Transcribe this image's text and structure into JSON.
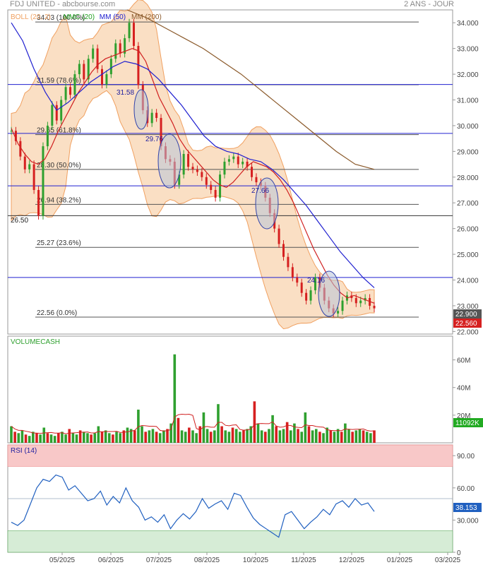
{
  "header": {
    "title": "FDJ UNITED - abcbourse.com",
    "period": "2 ANS - JOUR"
  },
  "colors": {
    "up": "#2fa02f",
    "down": "#d62020",
    "boll": "#f0a060",
    "boll_fill": "#f8d4b0",
    "mmc20": "#d02020",
    "mm50": "#2020d0",
    "mm200": "#8b5a2b",
    "rsi": "#2060c0",
    "vol_up": "#2fa02f",
    "vol_down": "#d62020",
    "last_price_tag": "#555555",
    "prev_price_tag": "#d62020",
    "vol_tag": "#22aa22",
    "rsi_tag": "#2060c0"
  },
  "legend": [
    {
      "label": "BOLL",
      "params": "(20, 2)",
      "color": "#f0a060"
    },
    {
      "label": "MMC",
      "params": "(20)",
      "color": "#20a020"
    },
    {
      "label": "MM",
      "params": "(50)",
      "color": "#2020d0"
    },
    {
      "label": "MM",
      "params": "(200)",
      "color": "#8b5a2b"
    }
  ],
  "chart_data": [
    {
      "type": "line",
      "title": "",
      "ylim": [
        21.9,
        34.5
      ],
      "y_ticks": [
        "22.000",
        "23.000",
        "24.000",
        "25.000",
        "26.000",
        "27.000",
        "28.000",
        "29.000",
        "30.000",
        "31.000",
        "32.000",
        "33.000",
        "34.000"
      ],
      "x_ticks": [
        "05/2025",
        "06/2025",
        "07/2025",
        "08/2025",
        "10/2025",
        "11/2025",
        "12/2025",
        "01/2025",
        "03/2025"
      ],
      "grid": false,
      "legend_position": "top-left",
      "close_series": {
        "name": "FDJ UNITED",
        "values": [
          29.8,
          29.4,
          28.8,
          28.3,
          28.5,
          27.5,
          26.5,
          29.2,
          30.0,
          30.8,
          30.2,
          31.0,
          31.5,
          31.2,
          32.0,
          32.4,
          31.8,
          32.6,
          33.0,
          32.2,
          31.6,
          32.0,
          32.6,
          33.2,
          32.8,
          33.4,
          34.0,
          33.1,
          31.58,
          30.6,
          30.1,
          30.5,
          30.3,
          29.2,
          28.7,
          28.6,
          27.7,
          28.1,
          28.9,
          28.4,
          28.3,
          28.2,
          28.0,
          27.7,
          27.5,
          27.2,
          28.1,
          28.6,
          28.7,
          28.8,
          28.5,
          28.6,
          28.4,
          28.0,
          27.8,
          27.66,
          27.2,
          26.6,
          26.0,
          25.4,
          24.9,
          24.5,
          24.1,
          23.9,
          23.5,
          23.2,
          23.6,
          24.1,
          23.7,
          23.2,
          22.9,
          22.7,
          22.8,
          23.2,
          23.4,
          23.3,
          23.1,
          23.2,
          23.3,
          23.0,
          22.9
        ]
      },
      "series": [
        {
          "name": "MMC (20)",
          "values": [
            29.9,
            29.3,
            28.9,
            28.6,
            28.5,
            28.7,
            29.2,
            29.8,
            30.3,
            30.8,
            31.3,
            31.7,
            32.1,
            32.4,
            32.6,
            32.7,
            32.8,
            32.9,
            33.0,
            32.9,
            32.5,
            31.8,
            31.1,
            30.6,
            30.1,
            29.5,
            29.1,
            28.8,
            28.5,
            28.2,
            27.9,
            27.7,
            27.6,
            27.8,
            28.1,
            28.4,
            28.6,
            28.5,
            28.4,
            28.2,
            27.9,
            27.5,
            27.0,
            26.4,
            25.8,
            25.2,
            24.7,
            24.2,
            23.8,
            23.5,
            23.3,
            23.4,
            23.3,
            23.2,
            23.1
          ]
        },
        {
          "name": "MM (50)",
          "values": [
            34.0,
            33.3,
            32.2,
            31.3,
            30.6,
            30.9,
            31.3,
            31.7,
            32.0,
            32.3,
            32.5,
            32.4,
            32.2,
            31.8,
            31.3,
            30.8,
            30.2,
            29.6,
            29.2,
            29.0,
            28.9,
            28.7,
            28.6,
            28.3,
            27.9,
            27.4,
            26.9,
            26.3,
            25.7,
            25.1,
            24.6,
            24.1,
            23.7
          ]
        },
        {
          "name": "MM (200)",
          "values": [
            34.5,
            34.2,
            33.8,
            33.4,
            33.0,
            32.5,
            32.0,
            31.4,
            30.8,
            30.2,
            29.6,
            29.0,
            28.5,
            28.3
          ]
        }
      ],
      "fibonacci": [
        {
          "price": "34.03",
          "pct": "(100.0%)"
        },
        {
          "price": "31.59",
          "pct": "(78.6%)"
        },
        {
          "price": "29.65",
          "pct": "(61.8%)"
        },
        {
          "price": "28.30",
          "pct": "(50.0%)"
        },
        {
          "price": "26.94",
          "pct": "(38.2%)"
        },
        {
          "price": "25.27",
          "pct": "(23.6%)"
        },
        {
          "price": "22.56",
          "pct": "(0.0%)"
        }
      ],
      "h_lines": [
        {
          "value": 31.6,
          "color": "#2020d0"
        },
        {
          "value": 29.7,
          "color": "#2020d0"
        },
        {
          "value": 27.66,
          "color": "#2020d0"
        },
        {
          "value": 26.5,
          "color": "#333333"
        },
        {
          "value": 24.1,
          "color": "#2020d0"
        }
      ],
      "annotations": [
        "31.58",
        "29.76",
        "27.66",
        "24.16",
        "26.50"
      ],
      "price_tags": {
        "last": "22.900",
        "prev": "22.560"
      }
    },
    {
      "type": "bar",
      "title": "VOLUMECASH",
      "ylim": [
        0,
        70
      ],
      "y_ticks": [
        "20M",
        "40M",
        "60M"
      ],
      "values": [
        12,
        8,
        7,
        9,
        6,
        5,
        8,
        7,
        6,
        11,
        7,
        6,
        5,
        7,
        8,
        6,
        10,
        7,
        6,
        9,
        8,
        7,
        6,
        7,
        12,
        8,
        9,
        7,
        6,
        8,
        7,
        9,
        11,
        10,
        9,
        24,
        12,
        8,
        9,
        10,
        8,
        7,
        9,
        10,
        14,
        64,
        18,
        9,
        8,
        11,
        9,
        7,
        12,
        22,
        10,
        8,
        9,
        28,
        12,
        9,
        8,
        11,
        10,
        8,
        9,
        10,
        12,
        30,
        14,
        9,
        8,
        10,
        20,
        12,
        9,
        10,
        15,
        9,
        14,
        10,
        8,
        22,
        12,
        9,
        10,
        8,
        7,
        11,
        9,
        8,
        10,
        8,
        14,
        10,
        8,
        9,
        10,
        9,
        8,
        7,
        9
      ],
      "vol_tag": "11092K"
    },
    {
      "type": "line",
      "title": "RSI (14)",
      "ylim": [
        0,
        100
      ],
      "y_ticks": [
        "0",
        "30.000",
        "60.00",
        "90.00"
      ],
      "overbought": 80,
      "oversold": 20,
      "series": [
        {
          "name": "RSI (14)",
          "values": [
            28,
            25,
            30,
            45,
            60,
            68,
            66,
            72,
            70,
            58,
            62,
            55,
            48,
            50,
            57,
            44,
            52,
            46,
            60,
            48,
            42,
            30,
            33,
            28,
            35,
            22,
            30,
            36,
            31,
            38,
            50,
            41,
            45,
            48,
            40,
            55,
            53,
            42,
            32,
            26,
            22,
            18,
            14,
            35,
            38,
            30,
            22,
            28,
            33,
            40,
            35,
            45,
            48,
            42,
            50,
            44,
            46,
            38
          ]
        }
      ],
      "rsi_tag": "38.153"
    }
  ]
}
